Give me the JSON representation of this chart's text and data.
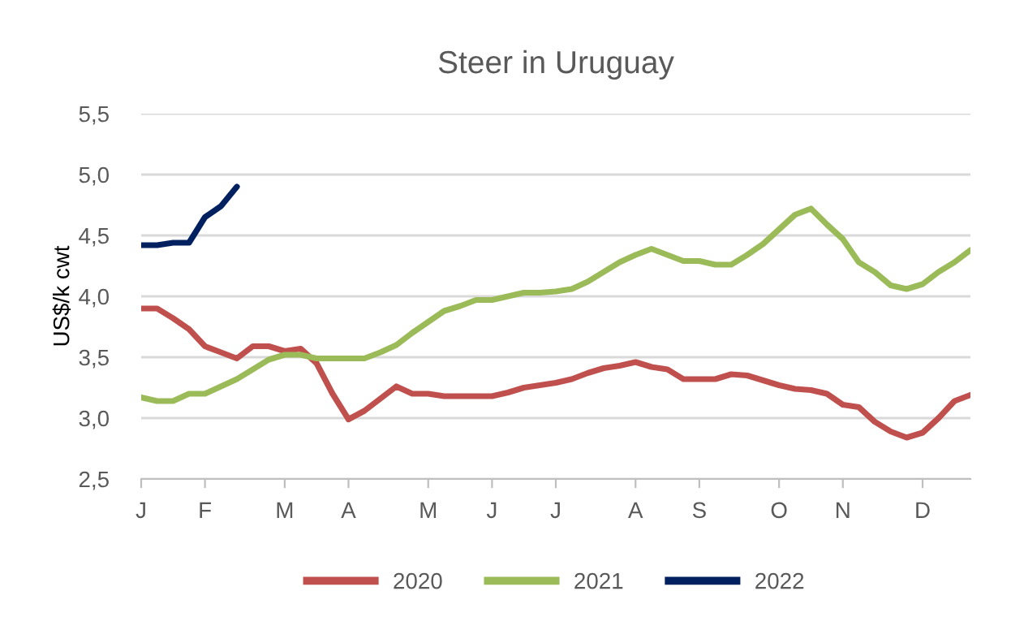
{
  "chart_data": {
    "type": "line",
    "title": "Steer in Uruguay",
    "ylabel": "US$/k cwt",
    "categories": [
      "J",
      null,
      null,
      null,
      "F",
      null,
      null,
      null,
      null,
      "M",
      null,
      null,
      null,
      "A",
      null,
      null,
      null,
      null,
      "M",
      null,
      null,
      null,
      "J",
      null,
      null,
      null,
      "J",
      null,
      null,
      null,
      null,
      "A",
      null,
      null,
      null,
      "S",
      null,
      null,
      null,
      null,
      "O",
      null,
      null,
      null,
      "N",
      null,
      null,
      null,
      null,
      "D",
      null,
      null,
      null
    ],
    "series": [
      {
        "name": "2020",
        "color": "#c0504d",
        "values": [
          3.9,
          3.9,
          3.82,
          3.73,
          3.59,
          3.54,
          3.49,
          3.59,
          3.59,
          3.55,
          3.57,
          3.45,
          3.2,
          2.99,
          3.06,
          3.16,
          3.26,
          3.2,
          3.2,
          3.18,
          3.18,
          3.18,
          3.18,
          3.21,
          3.25,
          3.27,
          3.29,
          3.32,
          3.37,
          3.41,
          3.43,
          3.46,
          3.42,
          3.4,
          3.32,
          3.32,
          3.32,
          3.36,
          3.35,
          3.31,
          3.27,
          3.24,
          3.23,
          3.2,
          3.11,
          3.09,
          2.97,
          2.89,
          2.84,
          2.88,
          3.0,
          3.14,
          3.19
        ]
      },
      {
        "name": "2021",
        "color": "#9bbb59",
        "values": [
          3.17,
          3.14,
          3.14,
          3.2,
          3.2,
          3.26,
          3.32,
          3.4,
          3.48,
          3.52,
          3.52,
          3.49,
          3.49,
          3.49,
          3.49,
          3.54,
          3.6,
          3.7,
          3.79,
          3.88,
          3.92,
          3.97,
          3.97,
          4.0,
          4.03,
          4.03,
          4.04,
          4.06,
          4.12,
          4.2,
          4.28,
          4.34,
          4.39,
          4.34,
          4.29,
          4.29,
          4.26,
          4.26,
          4.34,
          4.43,
          4.55,
          4.67,
          4.72,
          4.59,
          4.47,
          4.28,
          4.2,
          4.09,
          4.06,
          4.1,
          4.2,
          4.28,
          4.38
        ]
      },
      {
        "name": "2022",
        "color": "#002060",
        "values": [
          4.42,
          4.42,
          4.44,
          4.44,
          4.65,
          4.74,
          4.9,
          null,
          null,
          null,
          null,
          null,
          null,
          null,
          null,
          null,
          null,
          null,
          null,
          null,
          null,
          null,
          null,
          null,
          null,
          null,
          null,
          null,
          null,
          null,
          null,
          null,
          null,
          null,
          null,
          null,
          null,
          null,
          null,
          null,
          null,
          null,
          null,
          null,
          null,
          null,
          null,
          null,
          null,
          null,
          null,
          null,
          null
        ]
      }
    ],
    "ylim": [
      2.5,
      5.5
    ],
    "yticks": [
      {
        "value": 2.5,
        "label": "2,5"
      },
      {
        "value": 3.0,
        "label": "3,0"
      },
      {
        "value": 3.5,
        "label": "3,5"
      },
      {
        "value": 4.0,
        "label": "4,0"
      },
      {
        "value": 4.5,
        "label": "4,5"
      },
      {
        "value": 5.0,
        "label": "5,0"
      },
      {
        "value": 5.5,
        "label": "5,5"
      }
    ],
    "grid": "y",
    "legend": "bottom",
    "marker": "none",
    "line_style": "solid"
  }
}
